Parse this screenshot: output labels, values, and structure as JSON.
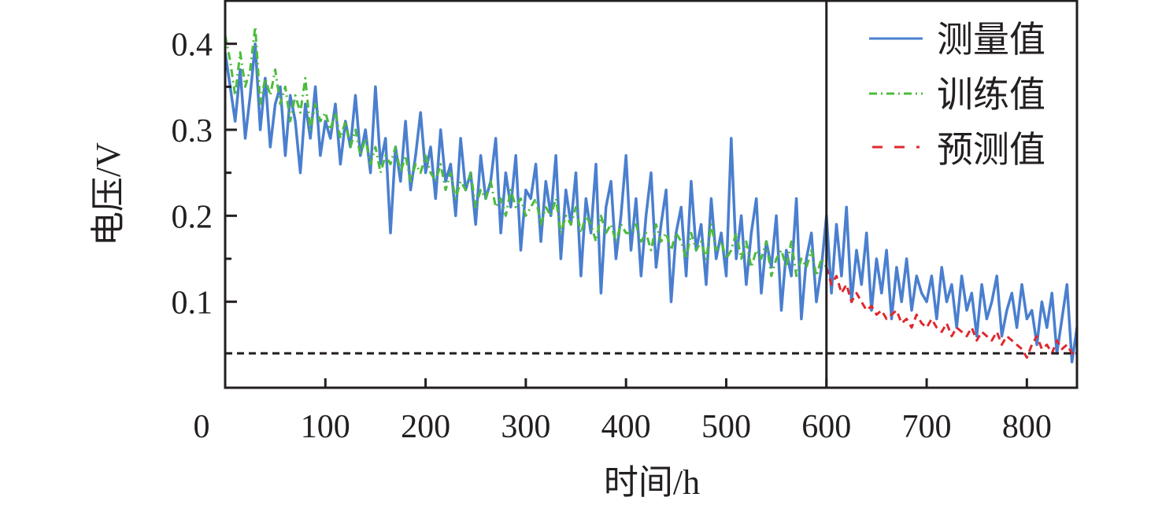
{
  "chart_data": {
    "type": "line",
    "title": "",
    "xlabel": "时间/h",
    "ylabel": "电压/V",
    "xlim": [
      0,
      850
    ],
    "ylim": [
      0,
      0.45
    ],
    "x_ticks": [
      0,
      100,
      200,
      300,
      400,
      500,
      600,
      700,
      800
    ],
    "x_tick_labels": [
      "0",
      "100",
      "200",
      "300",
      "400",
      "500",
      "600",
      "700",
      "800"
    ],
    "y_ticks": [
      0.1,
      0.2,
      0.3,
      0.4
    ],
    "y_tick_labels": [
      "0.1",
      "0.2",
      "0.3",
      "0.4"
    ],
    "y_minor_ticks": [
      0.15,
      0.25,
      0.35
    ],
    "grid": false,
    "legend_position": "top-right",
    "annotations": {
      "vertical_line_x": 600,
      "threshold_y": 0.04
    },
    "series": [
      {
        "name": "测量值",
        "color": "#4a7fcf",
        "style": "solid",
        "x_start": 0,
        "x_step": 5,
        "values": [
          0.39,
          0.35,
          0.31,
          0.37,
          0.29,
          0.34,
          0.4,
          0.3,
          0.36,
          0.28,
          0.33,
          0.35,
          0.27,
          0.34,
          0.31,
          0.25,
          0.33,
          0.29,
          0.35,
          0.27,
          0.31,
          0.29,
          0.33,
          0.26,
          0.31,
          0.28,
          0.34,
          0.27,
          0.3,
          0.25,
          0.35,
          0.26,
          0.29,
          0.18,
          0.28,
          0.24,
          0.31,
          0.23,
          0.27,
          0.32,
          0.25,
          0.28,
          0.22,
          0.3,
          0.24,
          0.26,
          0.2,
          0.29,
          0.23,
          0.25,
          0.19,
          0.27,
          0.22,
          0.24,
          0.29,
          0.18,
          0.25,
          0.21,
          0.27,
          0.16,
          0.23,
          0.22,
          0.26,
          0.17,
          0.24,
          0.2,
          0.27,
          0.15,
          0.23,
          0.19,
          0.25,
          0.13,
          0.22,
          0.18,
          0.26,
          0.11,
          0.21,
          0.24,
          0.15,
          0.2,
          0.27,
          0.16,
          0.22,
          0.13,
          0.2,
          0.25,
          0.14,
          0.19,
          0.23,
          0.1,
          0.18,
          0.21,
          0.13,
          0.24,
          0.16,
          0.19,
          0.12,
          0.22,
          0.15,
          0.18,
          0.13,
          0.29,
          0.15,
          0.2,
          0.12,
          0.18,
          0.22,
          0.11,
          0.17,
          0.14,
          0.2,
          0.09,
          0.16,
          0.13,
          0.22,
          0.08,
          0.15,
          0.18,
          0.1,
          0.14,
          0.2,
          0.11,
          0.19,
          0.13,
          0.21,
          0.1,
          0.16,
          0.12,
          0.18,
          0.09,
          0.15,
          0.11,
          0.16,
          0.08,
          0.14,
          0.1,
          0.15,
          0.09,
          0.13,
          0.11,
          0.1,
          0.13,
          0.08,
          0.14,
          0.1,
          0.12,
          0.07,
          0.13,
          0.09,
          0.11,
          0.06,
          0.12,
          0.08,
          0.1,
          0.13,
          0.06,
          0.09,
          0.11,
          0.07,
          0.12,
          0.08,
          0.09,
          0.05,
          0.1,
          0.07,
          0.11,
          0.04,
          0.08,
          0.12,
          0.03,
          0.07
        ]
      },
      {
        "name": "训练值",
        "color": "#4cbb3c",
        "style": "dash-dot",
        "x_start": 0,
        "x_step": 5,
        "values": [
          0.41,
          0.38,
          0.34,
          0.39,
          0.35,
          0.37,
          0.42,
          0.33,
          0.36,
          0.34,
          0.37,
          0.33,
          0.35,
          0.31,
          0.34,
          0.32,
          0.36,
          0.3,
          0.33,
          0.31,
          0.32,
          0.3,
          0.32,
          0.29,
          0.31,
          0.28,
          0.3,
          0.27,
          0.29,
          0.26,
          0.28,
          0.25,
          0.27,
          0.26,
          0.28,
          0.25,
          0.27,
          0.24,
          0.26,
          0.25,
          0.27,
          0.25,
          0.24,
          0.26,
          0.23,
          0.25,
          0.22,
          0.24,
          0.23,
          0.25,
          0.21,
          0.23,
          0.22,
          0.24,
          0.21,
          0.22,
          0.2,
          0.23,
          0.21,
          0.22,
          0.2,
          0.21,
          0.22,
          0.19,
          0.21,
          0.2,
          0.22,
          0.18,
          0.2,
          0.19,
          0.21,
          0.18,
          0.2,
          0.19,
          0.17,
          0.2,
          0.18,
          0.19,
          0.17,
          0.19,
          0.18,
          0.18,
          0.19,
          0.17,
          0.18,
          0.16,
          0.19,
          0.17,
          0.18,
          0.16,
          0.18,
          0.17,
          0.15,
          0.18,
          0.16,
          0.17,
          0.15,
          0.19,
          0.16,
          0.17,
          0.15,
          0.16,
          0.18,
          0.15,
          0.17,
          0.14,
          0.16,
          0.15,
          0.17,
          0.13,
          0.15,
          0.16,
          0.14,
          0.17,
          0.13,
          0.15,
          0.14,
          0.16,
          0.13,
          0.15,
          0.14
        ]
      },
      {
        "name": "预测值",
        "color": "#e0282e",
        "style": "dashed",
        "x_start": 600,
        "x_step": 5,
        "values": [
          0.14,
          0.12,
          0.13,
          0.11,
          0.12,
          0.1,
          0.11,
          0.1,
          0.09,
          0.095,
          0.085,
          0.09,
          0.08,
          0.085,
          0.09,
          0.075,
          0.08,
          0.07,
          0.085,
          0.075,
          0.07,
          0.08,
          0.07,
          0.065,
          0.075,
          0.06,
          0.07,
          0.065,
          0.06,
          0.07,
          0.055,
          0.065,
          0.06,
          0.055,
          0.065,
          0.05,
          0.06,
          0.055,
          0.05,
          0.045,
          0.035,
          0.05,
          0.06,
          0.045,
          0.05,
          0.04,
          0.055,
          0.045,
          0.05,
          0.04,
          0.045
        ]
      }
    ]
  }
}
